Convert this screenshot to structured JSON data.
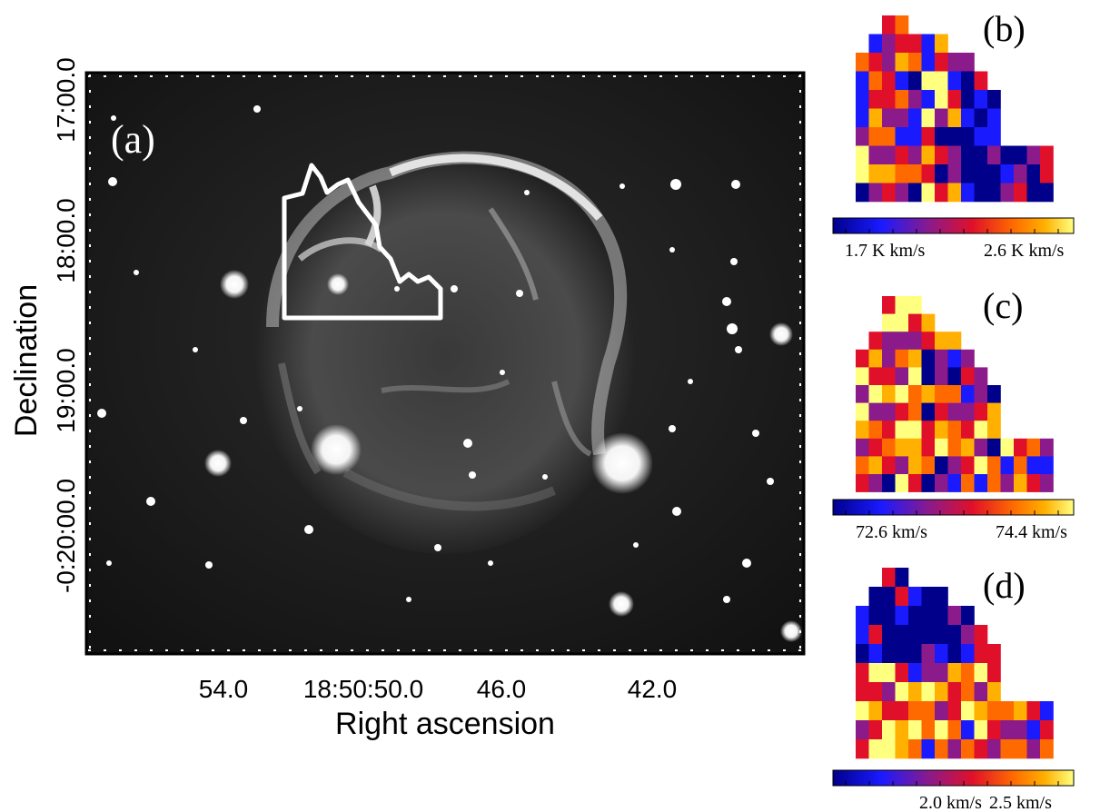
{
  "figure": {
    "panel_a": {
      "label": "(a)",
      "y_axis_title": "Declination",
      "x_axis_title": "Right ascension",
      "y_ticks": [
        "17:00.0",
        "18:00.0",
        "19:00.0",
        "-0:20:00.0"
      ],
      "x_ticks": [
        "54.0",
        "18:50:50.0",
        "46.0",
        "42.0"
      ]
    },
    "panel_b": {
      "label": "(b)",
      "colorbar_ticks": [
        "1.7 K km/s",
        "2.6 K km/s"
      ]
    },
    "panel_c": {
      "label": "(c)",
      "colorbar_ticks": [
        "72.6 km/s",
        "74.4 km/s"
      ]
    },
    "panel_d": {
      "label": "(d)",
      "colorbar_ticks": [
        "2.0 km/s",
        "2.5 km/s"
      ]
    }
  },
  "colors": {
    "colormap": [
      "#00008b",
      "#1a1aff",
      "#8b1a8b",
      "#e0102a",
      "#ff6a00",
      "#ffb000",
      "#ffff80"
    ],
    "contour": "#ffffff"
  }
}
